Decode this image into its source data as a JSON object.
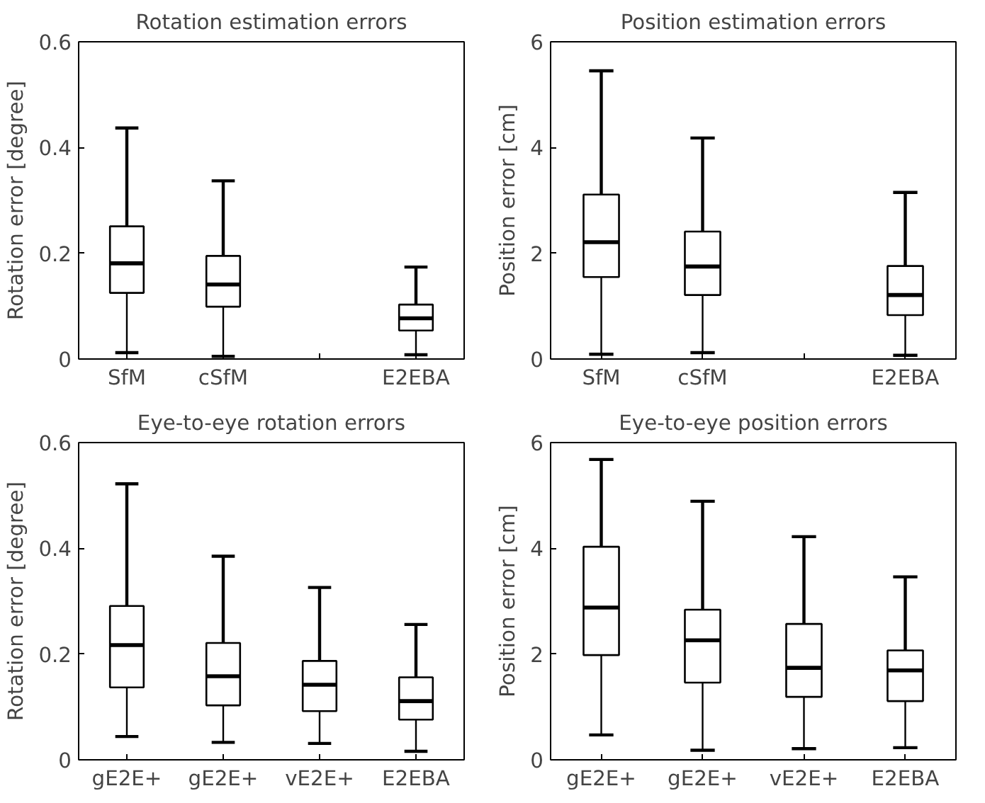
{
  "chart_data": [
    {
      "type": "box",
      "title": "Rotation estimation errors",
      "ylabel": "Rotation error [degree]",
      "categories": [
        "SfM",
        "cSfM",
        null,
        "E2EBA"
      ],
      "ylim": [
        0,
        0.6
      ],
      "yticks": [
        0,
        0.2,
        0.4,
        0.6
      ],
      "boxes": [
        {
          "low": 0.012,
          "q1": 0.125,
          "median": 0.181,
          "q3": 0.251,
          "high": 0.437
        },
        {
          "low": 0.005,
          "q1": 0.099,
          "median": 0.141,
          "q3": 0.195,
          "high": 0.337
        },
        null,
        {
          "low": 0.008,
          "q1": 0.054,
          "median": 0.077,
          "q3": 0.103,
          "high": 0.174
        }
      ]
    },
    {
      "type": "box",
      "title": "Position estimation errors",
      "ylabel": "Position error [cm]",
      "categories": [
        "SfM",
        "cSfM",
        null,
        "E2EBA"
      ],
      "ylim": [
        0,
        6
      ],
      "yticks": [
        0,
        2,
        4,
        6
      ],
      "boxes": [
        {
          "low": 0.09,
          "q1": 1.55,
          "median": 2.21,
          "q3": 3.11,
          "high": 5.45
        },
        {
          "low": 0.12,
          "q1": 1.21,
          "median": 1.75,
          "q3": 2.41,
          "high": 4.18
        },
        null,
        {
          "low": 0.07,
          "q1": 0.83,
          "median": 1.21,
          "q3": 1.76,
          "high": 3.15
        }
      ]
    },
    {
      "type": "box",
      "title": "Eye-to-eye rotation errors",
      "ylabel": "Rotation error [degree]",
      "categories": [
        "gE2E+",
        "gE2E+",
        "vE2E+",
        "E2EBA"
      ],
      "ylim": [
        0,
        0.6
      ],
      "yticks": [
        0,
        0.2,
        0.4,
        0.6
      ],
      "boxes": [
        {
          "low": 0.044,
          "q1": 0.137,
          "median": 0.217,
          "q3": 0.291,
          "high": 0.522
        },
        {
          "low": 0.033,
          "q1": 0.103,
          "median": 0.158,
          "q3": 0.221,
          "high": 0.385
        },
        {
          "low": 0.031,
          "q1": 0.092,
          "median": 0.142,
          "q3": 0.187,
          "high": 0.326
        },
        {
          "low": 0.016,
          "q1": 0.076,
          "median": 0.111,
          "q3": 0.156,
          "high": 0.256
        }
      ]
    },
    {
      "type": "box",
      "title": "Eye-to-eye position errors",
      "ylabel": "Position error [cm]",
      "categories": [
        "gE2E+",
        "gE2E+",
        "vE2E+",
        "E2EBA"
      ],
      "ylim": [
        0,
        6
      ],
      "yticks": [
        0,
        2,
        4,
        6
      ],
      "boxes": [
        {
          "low": 0.47,
          "q1": 1.98,
          "median": 2.88,
          "q3": 4.03,
          "high": 5.68
        },
        {
          "low": 0.18,
          "q1": 1.46,
          "median": 2.26,
          "q3": 2.84,
          "high": 4.89
        },
        {
          "low": 0.21,
          "q1": 1.19,
          "median": 1.74,
          "q3": 2.57,
          "high": 4.22
        },
        {
          "low": 0.23,
          "q1": 1.11,
          "median": 1.69,
          "q3": 2.07,
          "high": 3.46
        }
      ]
    }
  ]
}
